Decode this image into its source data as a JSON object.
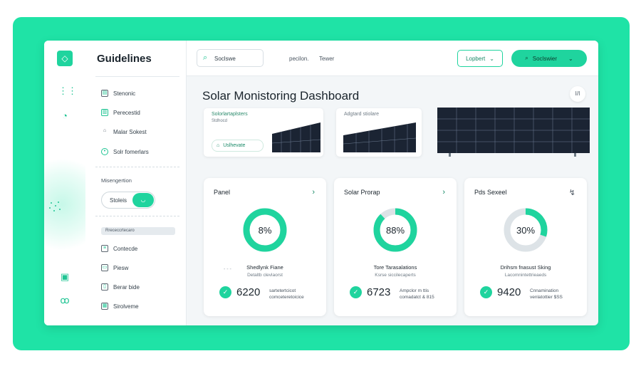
{
  "sidebar": {
    "title": "Guidelines",
    "items": [
      {
        "label": "Stenonic",
        "icon": "box-icon"
      },
      {
        "label": "Perecestid",
        "icon": "panel-icon"
      },
      {
        "label": "Malar Sokest",
        "icon": "home-icon"
      },
      {
        "label": "Solr fomerlars",
        "icon": "location-icon"
      }
    ],
    "section": "Misengertion",
    "toggle_label": "Stoleis",
    "bar_label": "Rrececcrtecaro",
    "items2": [
      {
        "label": "Contecde",
        "icon": "list-icon"
      },
      {
        "label": "Piesw",
        "icon": "preview-icon"
      },
      {
        "label": "Berar bide",
        "icon": "doc-icon"
      },
      {
        "label": "Sirolveme",
        "icon": "settings-icon"
      }
    ]
  },
  "topbar": {
    "search_text": "Soclswe",
    "link1": "pecilon.",
    "link2": "Tewer",
    "outline_button": "Lopbert",
    "primary_button": "Soclswier"
  },
  "main": {
    "title": "Solar Monistoring Dashboard",
    "corner_label": "I/I",
    "image_cards": [
      {
        "caption": "Solorlartaplsters",
        "caption2": "Stdhocd",
        "pill": "Uslhevate"
      },
      {
        "caption": "Adgtard stiolare"
      }
    ],
    "cards": [
      {
        "title": "Panel",
        "percent": "8%",
        "fraction": 0.08,
        "sub1": "Shedlynk Fiane",
        "sub2": "Detaltb clevlaorst",
        "value": "6220",
        "note1": "sartetertcicot",
        "note2": "comceteretoicice"
      },
      {
        "title": "Solar Prorap",
        "percent": "88%",
        "fraction": 0.88,
        "sub1": "Tore Tarasalations",
        "sub2": "Ksrse siccilecaperts",
        "value": "6723",
        "note1": "Ampclor m ttis",
        "note2": "comadatct & 815"
      },
      {
        "title": "Pds Sexeel",
        "percent": "30%",
        "fraction": 0.3,
        "sub1": "Drihsm fnasust Sking",
        "sub2": "Lacomnintettrieaeds",
        "value": "9420",
        "note1": "Cnnamination",
        "note2": "venlatottier $SS"
      }
    ]
  },
  "colors": {
    "accent": "#1fd49e",
    "frame": "#1fe3a6",
    "donut_track": "#dde3e7"
  }
}
